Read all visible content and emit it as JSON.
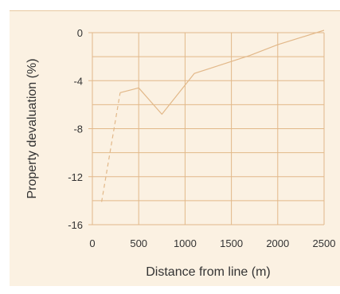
{
  "chart_data": {
    "type": "line",
    "title": "",
    "xlabel": "Distance from line (m)",
    "ylabel": "Property devaluation (%)",
    "xlim": [
      0,
      2500
    ],
    "ylim": [
      -16,
      0
    ],
    "xticks": [
      0,
      500,
      1000,
      1500,
      2000,
      2500
    ],
    "yticks": [
      0,
      -4,
      -8,
      -12,
      -16
    ],
    "grid": true,
    "color": "#e2b889",
    "panel_background": "#fbf1e2",
    "series": [
      {
        "style": "dashed",
        "x": [
          100,
          300
        ],
        "y": [
          -14.1,
          -5.0
        ]
      },
      {
        "style": "solid",
        "x": [
          300,
          500,
          750,
          1100,
          1700,
          2000,
          2500
        ],
        "y": [
          -5.0,
          -4.6,
          -6.8,
          -3.4,
          -1.9,
          -1.0,
          0.2
        ]
      }
    ]
  }
}
